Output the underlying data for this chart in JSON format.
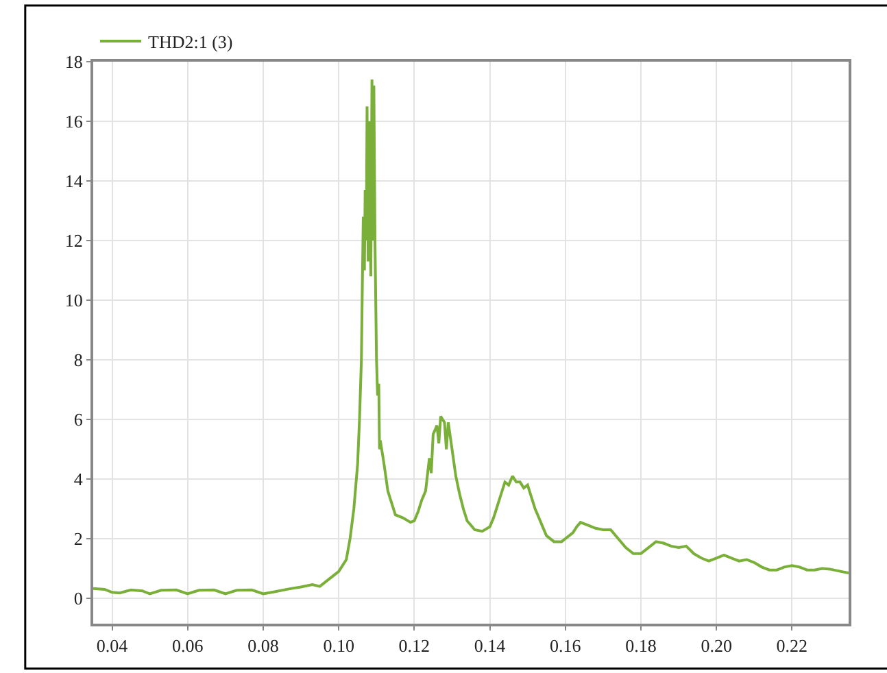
{
  "chart_data": {
    "type": "line",
    "legend": "top left",
    "grid": true,
    "marker": "none",
    "line_style": "solid",
    "xlim": [
      0.035,
      0.235
    ],
    "ylim": [
      -0.85,
      18
    ],
    "xticks": [
      {
        "value": 0.04,
        "label": "0.04"
      },
      {
        "value": 0.06,
        "label": "0.06"
      },
      {
        "value": 0.08,
        "label": "0.08"
      },
      {
        "value": 0.1,
        "label": "0.10"
      },
      {
        "value": 0.12,
        "label": "0.12"
      },
      {
        "value": 0.14,
        "label": "0.14"
      },
      {
        "value": 0.16,
        "label": "0.16"
      },
      {
        "value": 0.18,
        "label": "0.18"
      },
      {
        "value": 0.2,
        "label": "0.20"
      },
      {
        "value": 0.22,
        "label": "0.22"
      }
    ],
    "yticks": [
      0,
      2,
      4,
      6,
      8,
      10,
      12,
      14,
      16,
      18
    ],
    "series": [
      {
        "name": "THD2:1 (3)",
        "color": "#7ab03a",
        "x": [
          0.035,
          0.038,
          0.04,
          0.042,
          0.045,
          0.048,
          0.05,
          0.053,
          0.057,
          0.06,
          0.063,
          0.067,
          0.07,
          0.073,
          0.077,
          0.08,
          0.083,
          0.087,
          0.09,
          0.093,
          0.095,
          0.097,
          0.1,
          0.102,
          0.103,
          0.104,
          0.105,
          0.1055,
          0.106,
          0.1062,
          0.1065,
          0.1068,
          0.107,
          0.1073,
          0.1075,
          0.1078,
          0.108,
          0.1083,
          0.1085,
          0.1088,
          0.109,
          0.1093,
          0.1096,
          0.11,
          0.1103,
          0.1106,
          0.1108,
          0.111,
          0.112,
          0.113,
          0.114,
          0.115,
          0.117,
          0.119,
          0.12,
          0.121,
          0.122,
          0.123,
          0.124,
          0.1245,
          0.125,
          0.126,
          0.1265,
          0.127,
          0.128,
          0.1285,
          0.129,
          0.13,
          0.131,
          0.132,
          0.133,
          0.134,
          0.136,
          0.138,
          0.14,
          0.141,
          0.142,
          0.143,
          0.144,
          0.145,
          0.146,
          0.147,
          0.148,
          0.149,
          0.15,
          0.151,
          0.152,
          0.153,
          0.154,
          0.155,
          0.157,
          0.159,
          0.16,
          0.162,
          0.163,
          0.164,
          0.166,
          0.168,
          0.17,
          0.172,
          0.174,
          0.176,
          0.178,
          0.18,
          0.182,
          0.184,
          0.186,
          0.188,
          0.19,
          0.192,
          0.194,
          0.196,
          0.198,
          0.2,
          0.202,
          0.204,
          0.206,
          0.208,
          0.21,
          0.212,
          0.214,
          0.216,
          0.218,
          0.22,
          0.222,
          0.224,
          0.226,
          0.228,
          0.23,
          0.233,
          0.235
        ],
        "values": [
          0.33,
          0.3,
          0.2,
          0.18,
          0.28,
          0.25,
          0.15,
          0.27,
          0.28,
          0.15,
          0.27,
          0.28,
          0.15,
          0.27,
          0.28,
          0.15,
          0.22,
          0.32,
          0.38,
          0.46,
          0.4,
          0.6,
          0.9,
          1.3,
          2.0,
          3.0,
          4.5,
          6,
          8,
          10,
          12.8,
          11,
          13.7,
          12,
          16.5,
          11.3,
          16,
          12.5,
          10.8,
          17.4,
          12,
          17.2,
          12,
          8,
          6.8,
          7.2,
          5,
          5.3,
          4.5,
          3.6,
          3.2,
          2.8,
          2.7,
          2.55,
          2.6,
          2.9,
          3.3,
          3.6,
          4.7,
          4.2,
          5.5,
          5.8,
          5.2,
          6.1,
          5.9,
          5.0,
          5.9,
          5.0,
          4.1,
          3.5,
          3.0,
          2.6,
          2.3,
          2.25,
          2.4,
          2.7,
          3.1,
          3.5,
          3.9,
          3.8,
          4.1,
          3.9,
          3.9,
          3.7,
          3.8,
          3.4,
          3.0,
          2.7,
          2.4,
          2.1,
          1.9,
          1.9,
          2.0,
          2.2,
          2.4,
          2.55,
          2.45,
          2.35,
          2.3,
          2.3,
          2.0,
          1.7,
          1.5,
          1.5,
          1.7,
          1.9,
          1.85,
          1.75,
          1.7,
          1.75,
          1.5,
          1.35,
          1.25,
          1.35,
          1.45,
          1.35,
          1.25,
          1.3,
          1.2,
          1.05,
          0.95,
          0.95,
          1.05,
          1.1,
          1.05,
          0.95,
          0.95,
          1.0,
          0.98,
          0.9,
          0.85
        ]
      }
    ]
  }
}
